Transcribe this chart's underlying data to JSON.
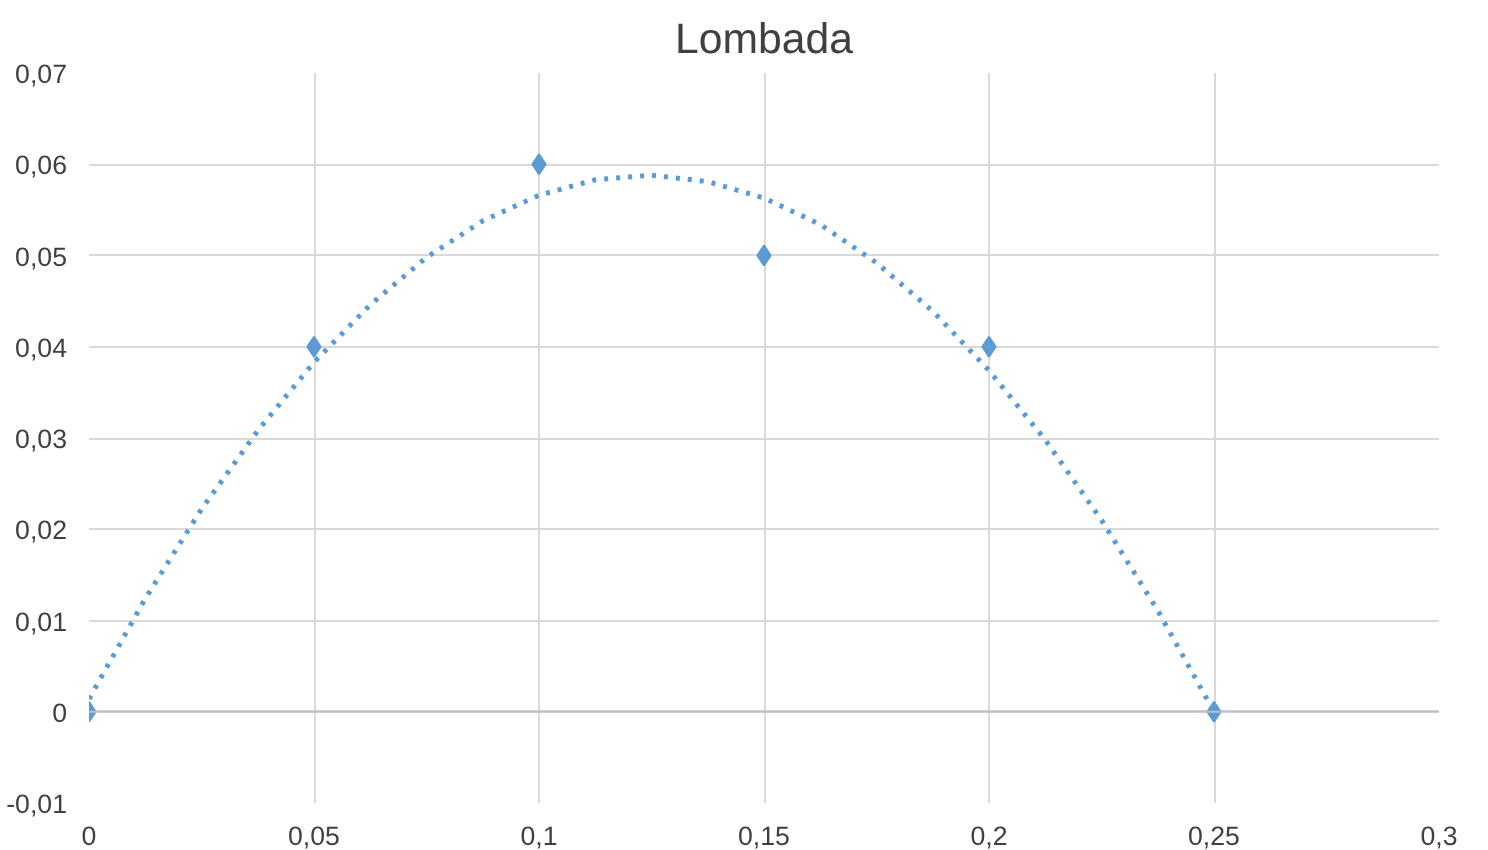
{
  "chart_data": {
    "type": "scatter",
    "title": "Lombada",
    "marker": "diamond",
    "grid": true,
    "series": [
      {
        "color": "#5b9bd5",
        "x": [
          0,
          0.05,
          0.1,
          0.15,
          0.2,
          0.25
        ],
        "values": [
          0,
          0.04,
          0.06,
          0.05,
          0.04,
          0
        ]
      },
      {
        "type": "line",
        "line_style": "dotted",
        "marker": "none",
        "color": "#5b9bd5",
        "x": [
          0,
          0.0125,
          0.025,
          0.0375,
          0.05,
          0.0625,
          0.075,
          0.0875,
          0.1,
          0.1125,
          0.125,
          0.1375,
          0.15,
          0.1625,
          0.175,
          0.1875,
          0.2,
          0.2125,
          0.225,
          0.2375,
          0.25
        ],
        "values": [
          0.0014,
          0.0124,
          0.0222,
          0.0308,
          0.0383,
          0.0446,
          0.0498,
          0.0538,
          0.0566,
          0.0583,
          0.0588,
          0.0581,
          0.0563,
          0.0534,
          0.0492,
          0.0439,
          0.0374,
          0.0298,
          0.021,
          0.0111,
          0
        ]
      }
    ],
    "xlim": [
      0,
      0.3
    ],
    "xticks": [
      0,
      {
        "value": 0.05,
        "label": "0,05"
      },
      {
        "value": 0.1,
        "label": "0,1"
      },
      {
        "value": 0.15,
        "label": "0,15"
      },
      {
        "value": 0.2,
        "label": "0,2"
      },
      {
        "value": 0.25,
        "label": "0,25"
      },
      {
        "value": 0.3,
        "label": "0,3"
      }
    ],
    "ylim": [
      -0.01,
      0.07
    ],
    "yticks": [
      {
        "value": -0.01,
        "label": "-0,01"
      },
      0,
      {
        "value": 0.01,
        "label": "0,01"
      },
      {
        "value": 0.02,
        "label": "0,02"
      },
      {
        "value": 0.03,
        "label": "0,03"
      },
      {
        "value": 0.04,
        "label": "0,04"
      },
      {
        "value": 0.05,
        "label": "0,05"
      },
      {
        "value": 0.06,
        "label": "0,06"
      },
      {
        "value": 0.07,
        "label": "0,07"
      }
    ]
  }
}
